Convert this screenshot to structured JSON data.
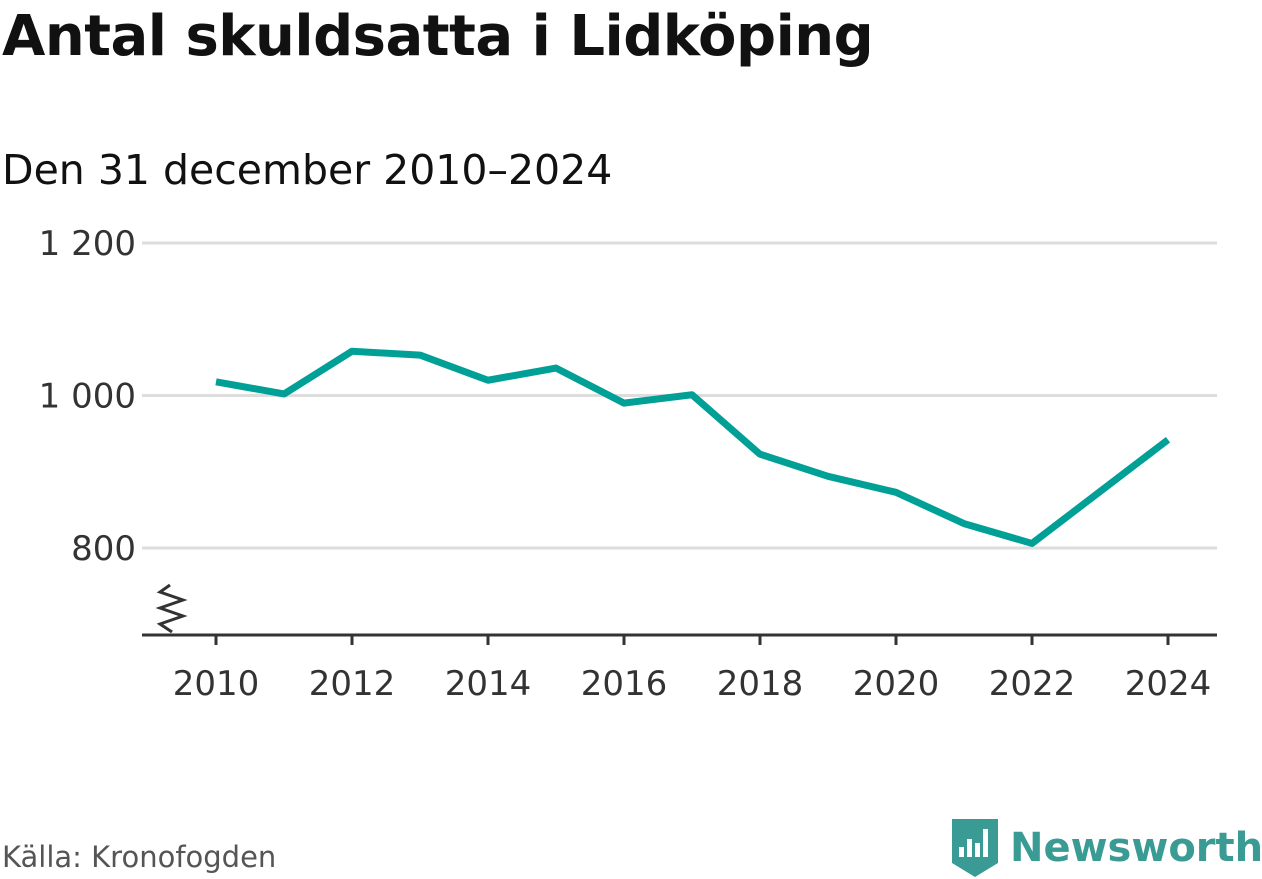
{
  "colors": {
    "line": "#00a096",
    "grid": "#dddddd",
    "axis": "#333333",
    "brand": "#3a9b94"
  },
  "footer": {
    "source": "Källa: Kronofogden",
    "brand_name": "Newsworthy",
    "brand_icon": "bar-chart-flag-icon"
  },
  "chart_data": {
    "type": "line",
    "title": "Antal skuldsatta i Lidköping",
    "subtitle": "Den 31 december 2010–2024",
    "xlabel": "",
    "ylabel": "",
    "x": [
      2010,
      2011,
      2012,
      2013,
      2014,
      2015,
      2016,
      2017,
      2018,
      2019,
      2020,
      2021,
      2022,
      2023,
      2024
    ],
    "series": [
      {
        "name": "Antal skuldsatta",
        "values": [
          1018,
          1002,
          1058,
          1053,
          1020,
          1036,
          990,
          1001,
          923,
          894,
          873,
          832,
          806,
          874,
          942
        ]
      }
    ],
    "ylim": [
      800,
      1200
    ],
    "yticks": [
      800,
      1000,
      1200
    ],
    "ytick_labels": [
      "800",
      "1 000",
      "1 200"
    ],
    "xticks": [
      2010,
      2012,
      2014,
      2016,
      2018,
      2020,
      2022,
      2024
    ],
    "xtick_labels": [
      "2010",
      "2012",
      "2014",
      "2016",
      "2018",
      "2020",
      "2022",
      "2024"
    ],
    "axis_break": true,
    "grid": true
  }
}
